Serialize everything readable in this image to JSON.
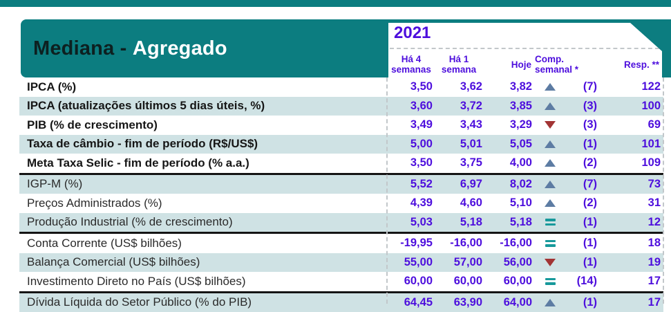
{
  "header": {
    "title_primary": "Mediana - ",
    "title_secondary": "Agregado",
    "year": "2021"
  },
  "colors": {
    "accent_teal": "#0c7d80",
    "row_shade": "#cfe2e4",
    "value_purple": "#4d0edd",
    "trend_up_blue": "#5d7ca3",
    "trend_down_red": "#a23434",
    "trend_equal_teal": "#17999b"
  },
  "chart_data": {
    "type": "table",
    "title": "Mediana - Agregado",
    "year": "2021",
    "columns": [
      "Há 4 semanas",
      "Há 1 semana",
      "Hoje",
      "Comp. semanal *",
      "Resp. **"
    ],
    "rows": [
      {
        "label": "IPCA (%)",
        "emphasis": true,
        "shaded": false,
        "values": [
          "3,50",
          "3,62",
          "3,82"
        ],
        "trend": "up",
        "count": "(7)",
        "resp": "122",
        "separator_after": false
      },
      {
        "label": "IPCA (atualizações últimos 5 dias úteis, %)",
        "emphasis": true,
        "shaded": true,
        "values": [
          "3,60",
          "3,72",
          "3,85"
        ],
        "trend": "up",
        "count": "(3)",
        "resp": "100",
        "separator_after": false
      },
      {
        "label": "PIB (% de crescimento)",
        "emphasis": true,
        "shaded": false,
        "values": [
          "3,49",
          "3,43",
          "3,29"
        ],
        "trend": "down",
        "count": "(3)",
        "resp": "69",
        "separator_after": false
      },
      {
        "label": "Taxa de câmbio - fim de período (R$/US$)",
        "emphasis": true,
        "shaded": true,
        "values": [
          "5,00",
          "5,01",
          "5,05"
        ],
        "trend": "up",
        "count": "(1)",
        "resp": "101",
        "separator_after": false
      },
      {
        "label": "Meta Taxa Selic - fim de período (% a.a.)",
        "emphasis": true,
        "shaded": false,
        "values": [
          "3,50",
          "3,75",
          "4,00"
        ],
        "trend": "up",
        "count": "(2)",
        "resp": "109",
        "separator_after": true
      },
      {
        "label": "IGP-M (%)",
        "emphasis": false,
        "shaded": true,
        "values": [
          "5,52",
          "6,97",
          "8,02"
        ],
        "trend": "up",
        "count": "(7)",
        "resp": "73",
        "separator_after": false
      },
      {
        "label": "Preços Administrados (%)",
        "emphasis": false,
        "shaded": false,
        "values": [
          "4,39",
          "4,60",
          "5,10"
        ],
        "trend": "up",
        "count": "(2)",
        "resp": "31",
        "separator_after": false
      },
      {
        "label": "Produção Industrial (% de crescimento)",
        "emphasis": false,
        "shaded": true,
        "values": [
          "5,03",
          "5,18",
          "5,18"
        ],
        "trend": "eq",
        "count": "(1)",
        "resp": "12",
        "separator_after": true
      },
      {
        "label": "Conta Corrente (US$ bilhões)",
        "emphasis": false,
        "shaded": false,
        "values": [
          "-19,95",
          "-16,00",
          "-16,00"
        ],
        "trend": "eq",
        "count": "(1)",
        "resp": "18",
        "separator_after": false
      },
      {
        "label": "Balança Comercial (US$ bilhões)",
        "emphasis": false,
        "shaded": true,
        "values": [
          "55,00",
          "57,00",
          "56,00"
        ],
        "trend": "down",
        "count": "(1)",
        "resp": "19",
        "separator_after": false
      },
      {
        "label": "Investimento Direto no País (US$ bilhões)",
        "emphasis": false,
        "shaded": false,
        "values": [
          "60,00",
          "60,00",
          "60,00"
        ],
        "trend": "eq",
        "count": "(14)",
        "resp": "17",
        "separator_after": true
      },
      {
        "label": "Dívida Líquida do Setor Público (% do PIB)",
        "emphasis": false,
        "shaded": true,
        "values": [
          "64,45",
          "63,90",
          "64,00"
        ],
        "trend": "up",
        "count": "(1)",
        "resp": "17",
        "separator_after": false
      }
    ]
  }
}
